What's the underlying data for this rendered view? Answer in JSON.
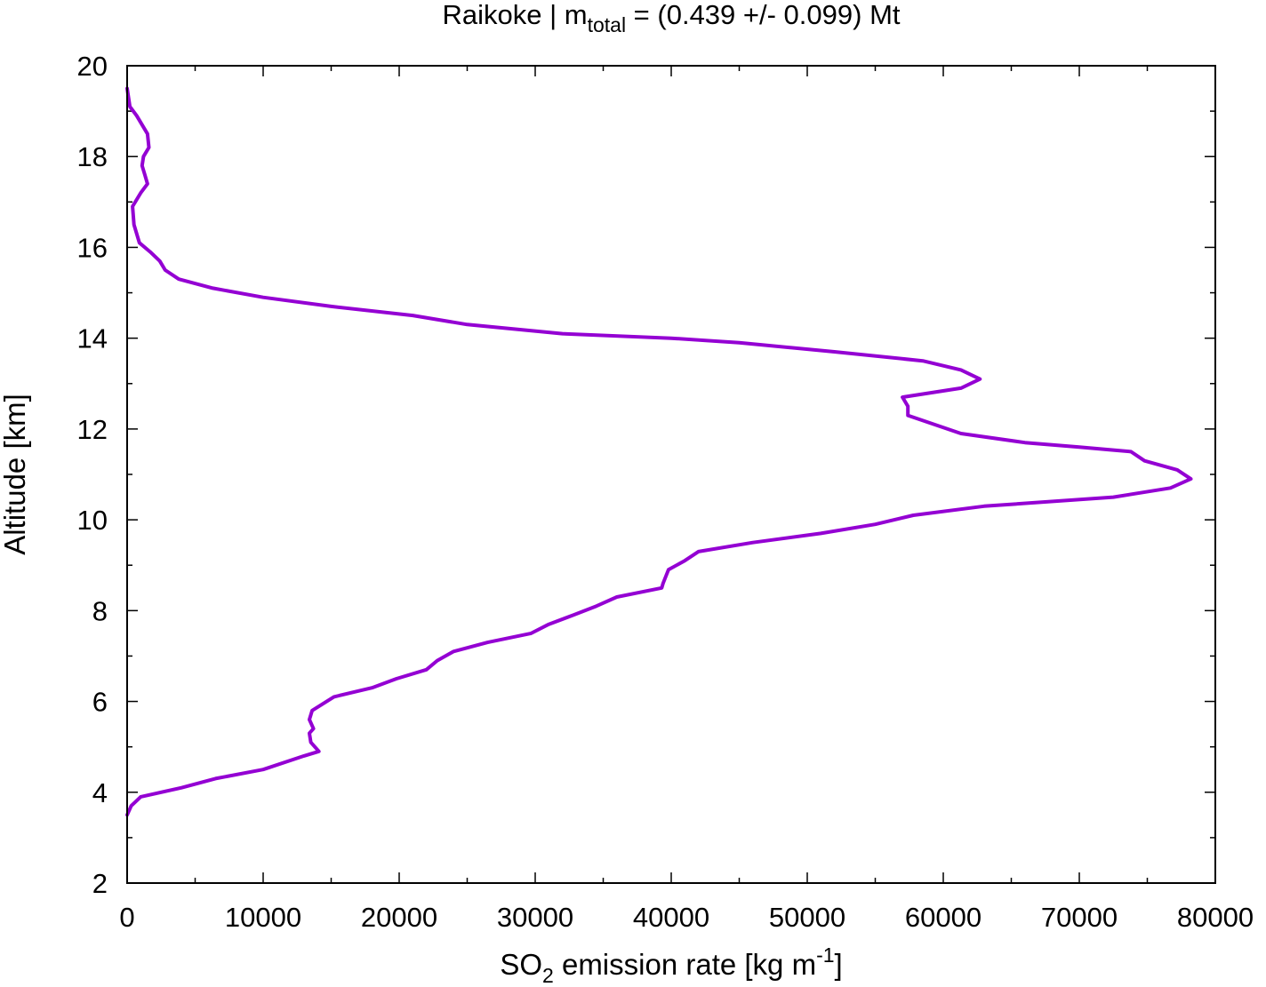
{
  "chart_data": {
    "type": "line",
    "title": {
      "prefix": "Raikoke | m",
      "subscript": "total",
      "suffix": " = (0.439 +/- 0.099) Mt"
    },
    "xlabel": {
      "prefix": "SO",
      "subscript": "2",
      "middle": " emission rate [kg m",
      "superscript": "-1",
      "suffix": "]"
    },
    "ylabel": "Altitude [km]",
    "xlim": [
      0,
      80000
    ],
    "ylim": [
      2,
      20
    ],
    "x_ticks": [
      0,
      10000,
      20000,
      30000,
      40000,
      50000,
      60000,
      70000,
      80000
    ],
    "x_tick_labels": [
      "0",
      "10000",
      "20000",
      "30000",
      "40000",
      "50000",
      "60000",
      "70000",
      "80000"
    ],
    "y_ticks": [
      2,
      4,
      6,
      8,
      10,
      12,
      14,
      16,
      18,
      20
    ],
    "y_tick_labels": [
      "2",
      "4",
      "6",
      "8",
      "10",
      "12",
      "14",
      "16",
      "18",
      "20"
    ],
    "grid": false,
    "legend": "none",
    "series": [
      {
        "color": "#9400d3",
        "points": [
          [
            0,
            3.5
          ],
          [
            300,
            3.7
          ],
          [
            1000,
            3.9
          ],
          [
            4000,
            4.1
          ],
          [
            6500,
            4.3
          ],
          [
            10000,
            4.5
          ],
          [
            13000,
            4.8
          ],
          [
            14100,
            4.9
          ],
          [
            13500,
            5.1
          ],
          [
            13400,
            5.3
          ],
          [
            13700,
            5.4
          ],
          [
            13400,
            5.6
          ],
          [
            13600,
            5.8
          ],
          [
            15200,
            6.1
          ],
          [
            18000,
            6.3
          ],
          [
            19800,
            6.5
          ],
          [
            22000,
            6.7
          ],
          [
            22800,
            6.9
          ],
          [
            24000,
            7.1
          ],
          [
            26500,
            7.3
          ],
          [
            29700,
            7.5
          ],
          [
            31000,
            7.7
          ],
          [
            32800,
            7.9
          ],
          [
            34500,
            8.1
          ],
          [
            36000,
            8.3
          ],
          [
            39300,
            8.5
          ],
          [
            39400,
            8.6
          ],
          [
            39800,
            8.9
          ],
          [
            41000,
            9.1
          ],
          [
            42000,
            9.3
          ],
          [
            46000,
            9.5
          ],
          [
            51000,
            9.7
          ],
          [
            55000,
            9.9
          ],
          [
            57800,
            10.1
          ],
          [
            63000,
            10.3
          ],
          [
            72500,
            10.5
          ],
          [
            76700,
            10.7
          ],
          [
            78200,
            10.9
          ],
          [
            77200,
            11.1
          ],
          [
            74800,
            11.3
          ],
          [
            73800,
            11.5
          ],
          [
            70000,
            11.6
          ],
          [
            66000,
            11.7
          ],
          [
            61300,
            11.9
          ],
          [
            57400,
            12.3
          ],
          [
            57400,
            12.5
          ],
          [
            57000,
            12.7
          ],
          [
            61300,
            12.9
          ],
          [
            62700,
            13.1
          ],
          [
            61300,
            13.3
          ],
          [
            58500,
            13.5
          ],
          [
            52000,
            13.7
          ],
          [
            45000,
            13.9
          ],
          [
            40000,
            14.0
          ],
          [
            32000,
            14.1
          ],
          [
            25000,
            14.3
          ],
          [
            21000,
            14.5
          ],
          [
            15000,
            14.7
          ],
          [
            10000,
            14.9
          ],
          [
            6300,
            15.1
          ],
          [
            3800,
            15.3
          ],
          [
            2800,
            15.5
          ],
          [
            2400,
            15.7
          ],
          [
            1700,
            15.9
          ],
          [
            900,
            16.1
          ],
          [
            500,
            16.5
          ],
          [
            400,
            16.9
          ],
          [
            1000,
            17.2
          ],
          [
            1500,
            17.4
          ],
          [
            1300,
            17.6
          ],
          [
            1100,
            17.8
          ],
          [
            1200,
            18.0
          ],
          [
            1600,
            18.2
          ],
          [
            1500,
            18.5
          ],
          [
            700,
            18.9
          ],
          [
            200,
            19.1
          ],
          [
            0,
            19.5
          ]
        ]
      }
    ]
  }
}
